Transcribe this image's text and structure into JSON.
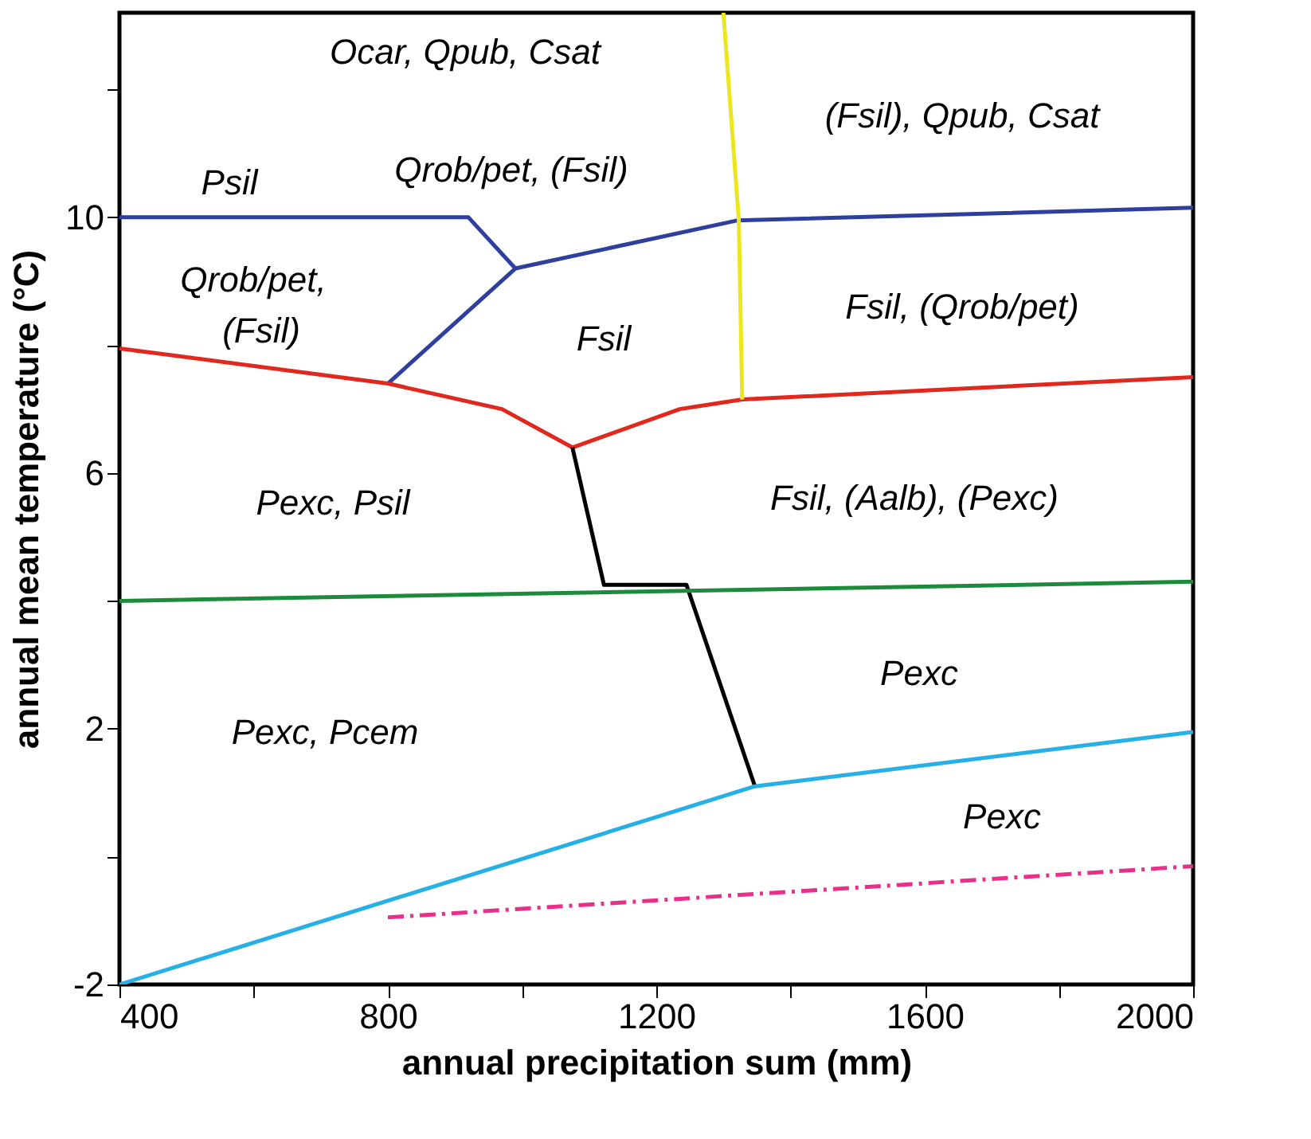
{
  "chart_data": {
    "type": "line",
    "xlabel": "annual precipitation sum (mm)",
    "ylabel": "annual mean temperature (°C)",
    "xlim": [
      400,
      2000
    ],
    "ylim": [
      -2,
      13.2
    ],
    "xticks": [
      400,
      {
        "value": 600,
        "label": null
      },
      800,
      {
        "value": 1000,
        "label": null
      },
      1200,
      {
        "value": 1400,
        "label": null
      },
      1600,
      {
        "value": 1800,
        "label": null
      },
      2000
    ],
    "yticks": [
      -2,
      {
        "value": 0,
        "label": null
      },
      2,
      {
        "value": 4,
        "label": null
      },
      6,
      {
        "value": 8,
        "label": null
      },
      10,
      {
        "value": 12,
        "label": null
      }
    ],
    "grid": false,
    "marker": "none",
    "series": [
      {
        "color": "#2e3f9e",
        "x": [
          400,
          920,
          990,
          1320,
          2000
        ],
        "values": [
          10.0,
          10.0,
          9.2,
          9.95,
          10.15
        ]
      },
      {
        "color": "#2e3f9e",
        "x": [
          990,
          800
        ],
        "values": [
          9.2,
          7.4
        ]
      },
      {
        "color": "#e0281e",
        "x": [
          400,
          800,
          970,
          1075,
          1235,
          1328,
          2000
        ],
        "values": [
          7.95,
          7.4,
          7.0,
          6.4,
          7.0,
          7.15,
          7.5
        ]
      },
      {
        "color": "#ece61e",
        "x": [
          1300,
          1323,
          1328
        ],
        "values": [
          13.2,
          9.95,
          7.15
        ]
      },
      {
        "color": "#000000",
        "x": [
          1075,
          1122,
          1245,
          1347
        ],
        "values": [
          6.4,
          4.25,
          4.25,
          1.1
        ]
      },
      {
        "color": "#1e8a3c",
        "x": [
          400,
          2000
        ],
        "values": [
          4.0,
          4.3
        ]
      },
      {
        "color": "#27b0e6",
        "x": [
          400,
          1347,
          2000
        ],
        "values": [
          -2.0,
          1.1,
          1.95
        ]
      },
      {
        "color": "#e8308a",
        "line_style": "dashed",
        "x": [
          800,
          2000
        ],
        "values": [
          -0.95,
          -0.15
        ]
      }
    ],
    "annotations": [
      "Ocar, Qpub, Csat",
      "(Fsil), Qpub, Csat",
      "Psil",
      "Qrob/pet, (Fsil)",
      "Qrob/pet,",
      "(Fsil)",
      "Fsil",
      "Fsil, (Qrob/pet)",
      "Pexc, Psil",
      "Fsil, (Aalb), (Pexc)",
      "Pexc",
      "Pexc, Pcem",
      "Pexc"
    ]
  }
}
